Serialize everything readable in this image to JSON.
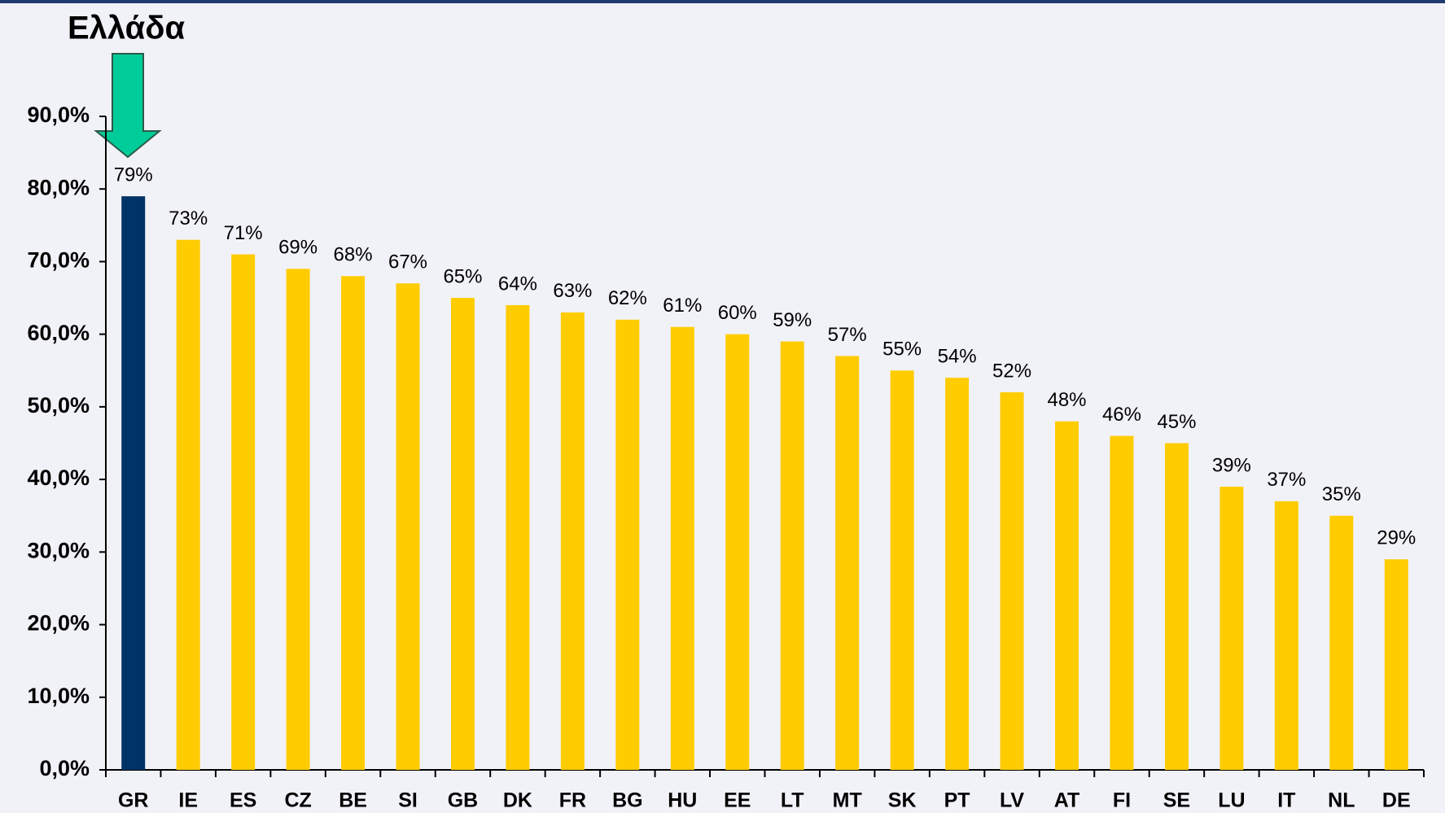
{
  "chart_data": {
    "type": "bar",
    "annotation": "Ελλάδα",
    "categories": [
      "GR",
      "IE",
      "ES",
      "CZ",
      "BE",
      "SI",
      "GB",
      "DK",
      "FR",
      "BG",
      "HU",
      "EE",
      "LT",
      "MT",
      "SK",
      "PT",
      "LV",
      "AT",
      "FI",
      "SE",
      "LU",
      "IT",
      "NL",
      "DE"
    ],
    "values": [
      79,
      73,
      71,
      69,
      68,
      67,
      65,
      64,
      63,
      62,
      61,
      60,
      59,
      57,
      55,
      54,
      52,
      48,
      46,
      45,
      39,
      37,
      35,
      29
    ],
    "value_labels": [
      "79%",
      "73%",
      "71%",
      "69%",
      "68%",
      "67%",
      "65%",
      "64%",
      "63%",
      "62%",
      "61%",
      "60%",
      "59%",
      "57%",
      "55%",
      "54%",
      "52%",
      "48%",
      "46%",
      "45%",
      "39%",
      "37%",
      "35%",
      "29%"
    ],
    "colors": [
      "#003366",
      "#ffcc00",
      "#ffcc00",
      "#ffcc00",
      "#ffcc00",
      "#ffcc00",
      "#ffcc00",
      "#ffcc00",
      "#ffcc00",
      "#ffcc00",
      "#ffcc00",
      "#ffcc00",
      "#ffcc00",
      "#ffcc00",
      "#ffcc00",
      "#ffcc00",
      "#ffcc00",
      "#ffcc00",
      "#ffcc00",
      "#ffcc00",
      "#ffcc00",
      "#ffcc00",
      "#ffcc00",
      "#ffcc00"
    ],
    "ylim": [
      0,
      90
    ],
    "yticks": [
      {
        "value": 0,
        "label": "0,0%"
      },
      {
        "value": 10,
        "label": "10,0%"
      },
      {
        "value": 20,
        "label": "20,0%"
      },
      {
        "value": 30,
        "label": "30,0%"
      },
      {
        "value": 40,
        "label": "40,0%"
      },
      {
        "value": 50,
        "label": "50,0%"
      },
      {
        "value": 60,
        "label": "60,0%"
      },
      {
        "value": 70,
        "label": "70,0%"
      },
      {
        "value": 80,
        "label": "80,0%"
      },
      {
        "value": 90,
        "label": "90,0%"
      }
    ],
    "grid": false
  }
}
